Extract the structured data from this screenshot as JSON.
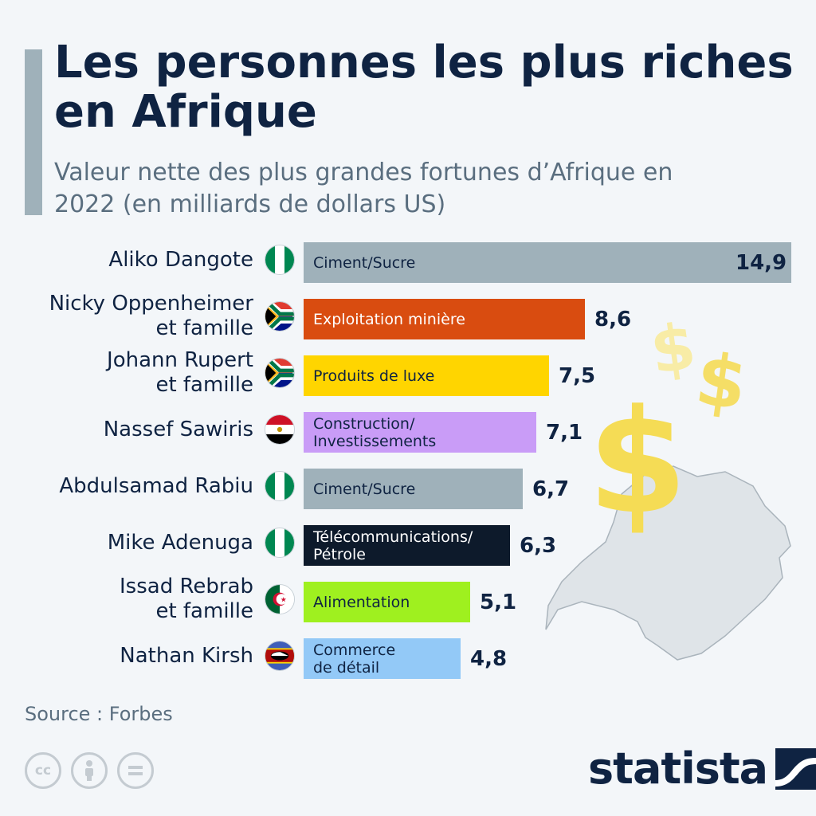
{
  "header": {
    "title": "Les personnes les plus riches en Afrique",
    "subtitle": "Valeur nette des plus grandes fortunes d’Afrique en 2022 (en milliards de dollars US)"
  },
  "chart_data": {
    "type": "bar",
    "orientation": "horizontal",
    "title": "Les personnes les plus riches en Afrique",
    "subtitle": "Valeur nette des plus grandes fortunes d’Afrique en 2022 (en milliards de dollars US)",
    "categories": [
      "Aliko Dangote",
      "Nicky Oppenheimer\net famille",
      "Johann Rupert\net famille",
      "Nassef Sawiris",
      "Abdulsamad Rabiu",
      "Mike Adenuga",
      "Issad Rebrab\net famille",
      "Nathan Kirsh"
    ],
    "values": [
      14.9,
      8.6,
      7.5,
      7.1,
      6.7,
      6.3,
      5.1,
      4.8
    ],
    "value_labels": [
      "14,9",
      "8,6",
      "7,5",
      "7,1",
      "6,7",
      "6,3",
      "5,1",
      "4,8"
    ],
    "sectors": [
      "Ciment/Sucre",
      "Exploitation minière",
      "Produits de luxe",
      "Construction/\nInvestissements",
      "Ciment/Sucre",
      "Télécommunications/\nPétrole",
      "Alimentation",
      "Commerce\nde détail"
    ],
    "countries": [
      "nigeria",
      "south-africa",
      "south-africa",
      "egypt",
      "nigeria",
      "nigeria",
      "algeria",
      "eswatini"
    ],
    "bar_colors": [
      "#9fb1ba",
      "#d94c10",
      "#ffd500",
      "#c99cf7",
      "#9fb1ba",
      "#0d1a2b",
      "#9ff01f",
      "#93c9f7"
    ],
    "sector_text_colors": [
      "#0f2342",
      "#ffffff",
      "#0f2342",
      "#0f2342",
      "#0f2342",
      "#ffffff",
      "#0f2342",
      "#0f2342"
    ],
    "xlim": [
      0,
      14.9
    ],
    "grid": false,
    "legend": "none"
  },
  "footer": {
    "source": "Source : Forbes",
    "brand": "statista",
    "cc_icons": [
      "cc-icon",
      "attribution-icon",
      "no-derivatives-icon"
    ]
  }
}
